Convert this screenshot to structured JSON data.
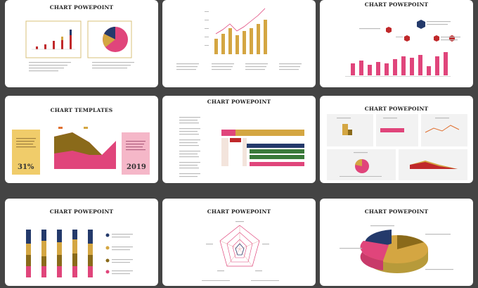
{
  "colors": {
    "pink": "#e0457b",
    "gold": "#d4a642",
    "navy": "#243a6b",
    "olive": "#8a6a1a",
    "green": "#3a7a3a",
    "red": "#c0282a",
    "bg": "#444444"
  },
  "slides": [
    {
      "title": "CHART POWEPOINT"
    },
    {
      "title": ""
    },
    {
      "title": "CHART POWEPOINT"
    },
    {
      "title": "CHART TEMPLATES",
      "left_value": "31%",
      "right_value": "2019"
    },
    {
      "title": "CHART POWEPOINT"
    },
    {
      "title": "CHART POWEPOINT"
    },
    {
      "title": "CHART POWEPOINT"
    },
    {
      "title": "CHART POWEPOINT"
    },
    {
      "title": "CHART POWEPOINT"
    }
  ]
}
